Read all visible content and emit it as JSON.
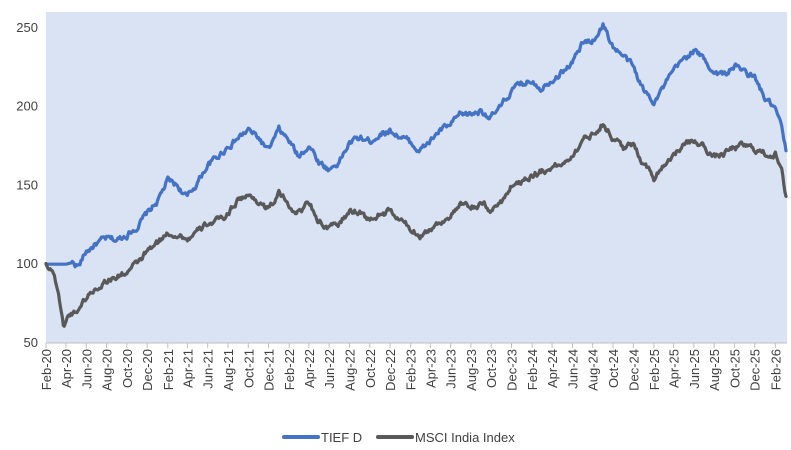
{
  "chart_data": {
    "type": "line",
    "title": "",
    "xlabel": "",
    "ylabel": "",
    "ylim": [
      50,
      260
    ],
    "yticks": [
      50,
      100,
      150,
      200,
      250
    ],
    "grid": false,
    "legend_position": "bottom",
    "plot_background": "#dae3f3",
    "x_tick_labels": [
      "Feb-20",
      "Apr-20",
      "Jun-20",
      "Aug-20",
      "Oct-20",
      "Dec-20",
      "Feb-21",
      "Apr-21",
      "Jun-21",
      "Aug-21",
      "Oct-21",
      "Dec-21",
      "Feb-22",
      "Apr-22",
      "Jun-22",
      "Aug-22",
      "Oct-22",
      "Dec-22",
      "Feb-23",
      "Apr-23",
      "Jun-23",
      "Aug-23",
      "Oct-23",
      "Dec-23",
      "Feb-24",
      "Apr-24",
      "Jun-24",
      "Aug-24",
      "Oct-24",
      "Dec-24",
      "Feb-25",
      "Apr-25",
      "Jun-25",
      "Aug-25",
      "Oct-25",
      "Dec-25",
      "Feb-26"
    ],
    "series": [
      {
        "name": "TIEF D",
        "color": "#4472c4",
        "points": [
          [
            "2020-02-01",
            100
          ],
          [
            "2020-03-01",
            100
          ],
          [
            "2020-04-01",
            100
          ],
          [
            "2020-04-20",
            101
          ],
          [
            "2020-05-10",
            99
          ],
          [
            "2020-06-01",
            108
          ],
          [
            "2020-07-01",
            113
          ],
          [
            "2020-08-01",
            116
          ],
          [
            "2020-09-01",
            115
          ],
          [
            "2020-10-01",
            119
          ],
          [
            "2020-11-01",
            124
          ],
          [
            "2020-12-01",
            132
          ],
          [
            "2021-01-01",
            140
          ],
          [
            "2021-02-01",
            153
          ],
          [
            "2021-03-01",
            150
          ],
          [
            "2021-04-01",
            142
          ],
          [
            "2021-05-01",
            152
          ],
          [
            "2021-06-01",
            163
          ],
          [
            "2021-07-01",
            168
          ],
          [
            "2021-08-01",
            175
          ],
          [
            "2021-09-01",
            180
          ],
          [
            "2021-10-01",
            185
          ],
          [
            "2021-11-01",
            180
          ],
          [
            "2021-12-01",
            172
          ],
          [
            "2022-01-01",
            185
          ],
          [
            "2022-02-01",
            178
          ],
          [
            "2022-03-01",
            168
          ],
          [
            "2022-04-01",
            176
          ],
          [
            "2022-05-01",
            165
          ],
          [
            "2022-06-01",
            160
          ],
          [
            "2022-07-01",
            165
          ],
          [
            "2022-08-01",
            177
          ],
          [
            "2022-09-01",
            180
          ],
          [
            "2022-10-01",
            178
          ],
          [
            "2022-11-01",
            183
          ],
          [
            "2022-12-01",
            185
          ],
          [
            "2023-01-01",
            181
          ],
          [
            "2023-02-01",
            177
          ],
          [
            "2023-03-01",
            172
          ],
          [
            "2023-04-01",
            178
          ],
          [
            "2023-05-01",
            185
          ],
          [
            "2023-06-01",
            188
          ],
          [
            "2023-07-01",
            195
          ],
          [
            "2023-08-01",
            195
          ],
          [
            "2023-09-01",
            198
          ],
          [
            "2023-10-01",
            193
          ],
          [
            "2023-11-01",
            200
          ],
          [
            "2023-12-01",
            210
          ],
          [
            "2024-01-01",
            214
          ],
          [
            "2024-02-01",
            217
          ],
          [
            "2024-03-01",
            212
          ],
          [
            "2024-04-01",
            218
          ],
          [
            "2024-05-01",
            222
          ],
          [
            "2024-06-01",
            228
          ],
          [
            "2024-07-01",
            240
          ],
          [
            "2024-08-01",
            242
          ],
          [
            "2024-09-01",
            252
          ],
          [
            "2024-10-01",
            238
          ],
          [
            "2024-11-01",
            232
          ],
          [
            "2024-12-01",
            225
          ],
          [
            "2025-01-01",
            210
          ],
          [
            "2025-02-01",
            204
          ],
          [
            "2025-03-01",
            212
          ],
          [
            "2025-04-01",
            222
          ],
          [
            "2025-05-01",
            230
          ],
          [
            "2025-06-01",
            236
          ],
          [
            "2025-07-01",
            230
          ],
          [
            "2025-08-01",
            222
          ],
          [
            "2025-09-01",
            220
          ],
          [
            "2025-10-01",
            226
          ],
          [
            "2025-11-01",
            222
          ],
          [
            "2025-12-01",
            218
          ],
          [
            "2026-01-01",
            205
          ],
          [
            "2026-02-01",
            198
          ],
          [
            "2026-02-20",
            186
          ],
          [
            "2026-03-05",
            172
          ]
        ]
      },
      {
        "name": "MSCI India Index",
        "color": "#595959",
        "points": [
          [
            "2020-02-01",
            100
          ],
          [
            "2020-02-20",
            97
          ],
          [
            "2020-03-10",
            82
          ],
          [
            "2020-03-24",
            60
          ],
          [
            "2020-04-10",
            68
          ],
          [
            "2020-05-01",
            70
          ],
          [
            "2020-06-01",
            79
          ],
          [
            "2020-07-01",
            85
          ],
          [
            "2020-08-01",
            90
          ],
          [
            "2020-09-01",
            92
          ],
          [
            "2020-10-01",
            95
          ],
          [
            "2020-11-01",
            100
          ],
          [
            "2020-12-01",
            108
          ],
          [
            "2021-01-01",
            113
          ],
          [
            "2021-02-01",
            120
          ],
          [
            "2021-03-01",
            119
          ],
          [
            "2021-04-01",
            116
          ],
          [
            "2021-05-01",
            120
          ],
          [
            "2021-06-01",
            126
          ],
          [
            "2021-07-01",
            127
          ],
          [
            "2021-08-01",
            132
          ],
          [
            "2021-09-01",
            142
          ],
          [
            "2021-10-01",
            143
          ],
          [
            "2021-11-01",
            140
          ],
          [
            "2021-12-01",
            135
          ],
          [
            "2022-01-01",
            145
          ],
          [
            "2022-02-01",
            137
          ],
          [
            "2022-03-01",
            133
          ],
          [
            "2022-04-01",
            139
          ],
          [
            "2022-05-01",
            128
          ],
          [
            "2022-06-01",
            122
          ],
          [
            "2022-07-01",
            126
          ],
          [
            "2022-08-01",
            133
          ],
          [
            "2022-09-01",
            134
          ],
          [
            "2022-10-01",
            127
          ],
          [
            "2022-11-01",
            132
          ],
          [
            "2022-12-01",
            133
          ],
          [
            "2023-01-01",
            128
          ],
          [
            "2023-02-01",
            122
          ],
          [
            "2023-03-01",
            119
          ],
          [
            "2023-04-01",
            122
          ],
          [
            "2023-05-01",
            127
          ],
          [
            "2023-06-01",
            131
          ],
          [
            "2023-07-01",
            137
          ],
          [
            "2023-08-01",
            136
          ],
          [
            "2023-09-01",
            138
          ],
          [
            "2023-10-01",
            134
          ],
          [
            "2023-11-01",
            140
          ],
          [
            "2023-12-01",
            150
          ],
          [
            "2024-01-01",
            153
          ],
          [
            "2024-02-01",
            157
          ],
          [
            "2024-03-01",
            159
          ],
          [
            "2024-04-01",
            162
          ],
          [
            "2024-05-01",
            163
          ],
          [
            "2024-06-01",
            170
          ],
          [
            "2024-07-01",
            178
          ],
          [
            "2024-08-01",
            183
          ],
          [
            "2024-09-01",
            190
          ],
          [
            "2024-10-01",
            180
          ],
          [
            "2024-11-01",
            174
          ],
          [
            "2024-12-01",
            175
          ],
          [
            "2025-01-01",
            165
          ],
          [
            "2025-02-01",
            155
          ],
          [
            "2025-03-01",
            163
          ],
          [
            "2025-04-01",
            170
          ],
          [
            "2025-05-01",
            175
          ],
          [
            "2025-06-01",
            178
          ],
          [
            "2025-07-01",
            175
          ],
          [
            "2025-08-01",
            168
          ],
          [
            "2025-09-01",
            170
          ],
          [
            "2025-10-01",
            174
          ],
          [
            "2025-11-01",
            175
          ],
          [
            "2025-12-01",
            173
          ],
          [
            "2026-01-01",
            170
          ],
          [
            "2026-02-01",
            170
          ],
          [
            "2026-02-20",
            158
          ],
          [
            "2026-03-05",
            143
          ]
        ]
      }
    ]
  }
}
